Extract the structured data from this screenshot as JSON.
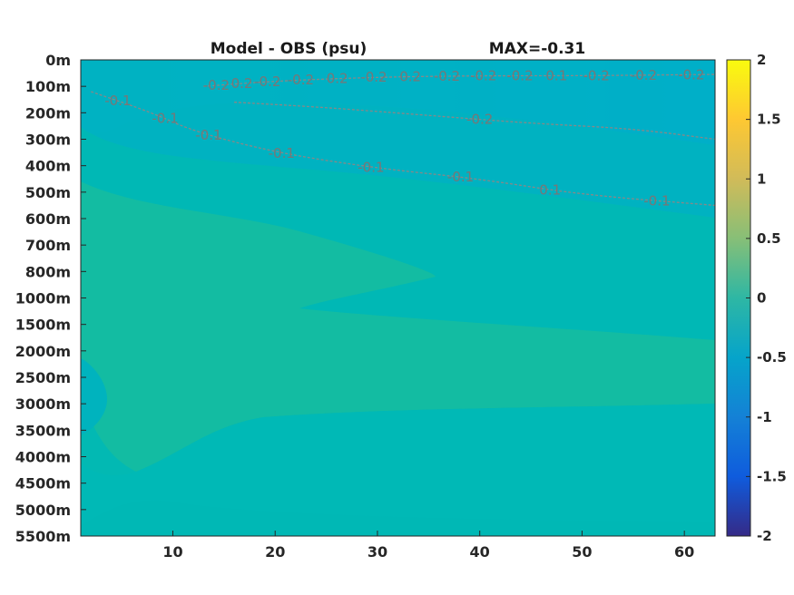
{
  "chart_data": {
    "type": "heatmap",
    "title_left": "Model - OBS (psu)",
    "title_right": "MAX=-0.31",
    "x_ticks": [
      "10",
      "20",
      "30",
      "40",
      "50",
      "60"
    ],
    "x_tick_values": [
      10,
      20,
      30,
      40,
      50,
      60
    ],
    "xlim": [
      1,
      63
    ],
    "y_ticks": [
      "0m",
      "100m",
      "200m",
      "300m",
      "400m",
      "500m",
      "600m",
      "700m",
      "800m",
      "1000m",
      "1500m",
      "2000m",
      "2500m",
      "3000m",
      "3500m",
      "4000m",
      "4500m",
      "5000m",
      "5500m"
    ],
    "colorbar": {
      "ticks": [
        "2",
        "1.5",
        "1",
        "0.5",
        "0",
        "-0.5",
        "-1",
        "-1.5",
        "-2"
      ],
      "clim": [
        -2,
        2
      ],
      "colormap": "parula"
    },
    "field_colors": {
      "near_zero": "#00b9ba",
      "slightly_positive": "#1abd9c",
      "slightly_negative": "#00aecd"
    },
    "contours": [
      {
        "level": -0.2,
        "label": "-0.2",
        "labels": [
          "-0.2",
          "0.2",
          "-0.2",
          "-0.2",
          "0.2",
          "-0.2",
          "0.2",
          "-0.2",
          "-0.2",
          "-0.2",
          "0.1",
          "-0.2",
          "-0.2",
          "-0.2"
        ],
        "points": [
          [
            13,
            100
          ],
          [
            20,
            80
          ],
          [
            30,
            65
          ],
          [
            40,
            60
          ],
          [
            50,
            60
          ],
          [
            63,
            55
          ]
        ]
      },
      {
        "level": -0.2,
        "label": "-0.2",
        "points": [
          [
            16,
            160
          ],
          [
            25,
            180
          ],
          [
            35,
            210
          ],
          [
            45,
            240
          ],
          [
            55,
            260
          ],
          [
            63,
            300
          ]
        ]
      },
      {
        "level": -0.1,
        "label": "-0.1",
        "labels": [
          "-0.1",
          "-0.1",
          "-0.1",
          "-0.1",
          "-0.1",
          "-0.1",
          "0.1",
          "-0.1"
        ],
        "points": [
          [
            2,
            120
          ],
          [
            8,
            200
          ],
          [
            12,
            270
          ],
          [
            20,
            350
          ],
          [
            30,
            410
          ],
          [
            40,
            450
          ],
          [
            50,
            510
          ],
          [
            63,
            550
          ]
        ]
      }
    ],
    "colorbar_color": "#000000"
  }
}
